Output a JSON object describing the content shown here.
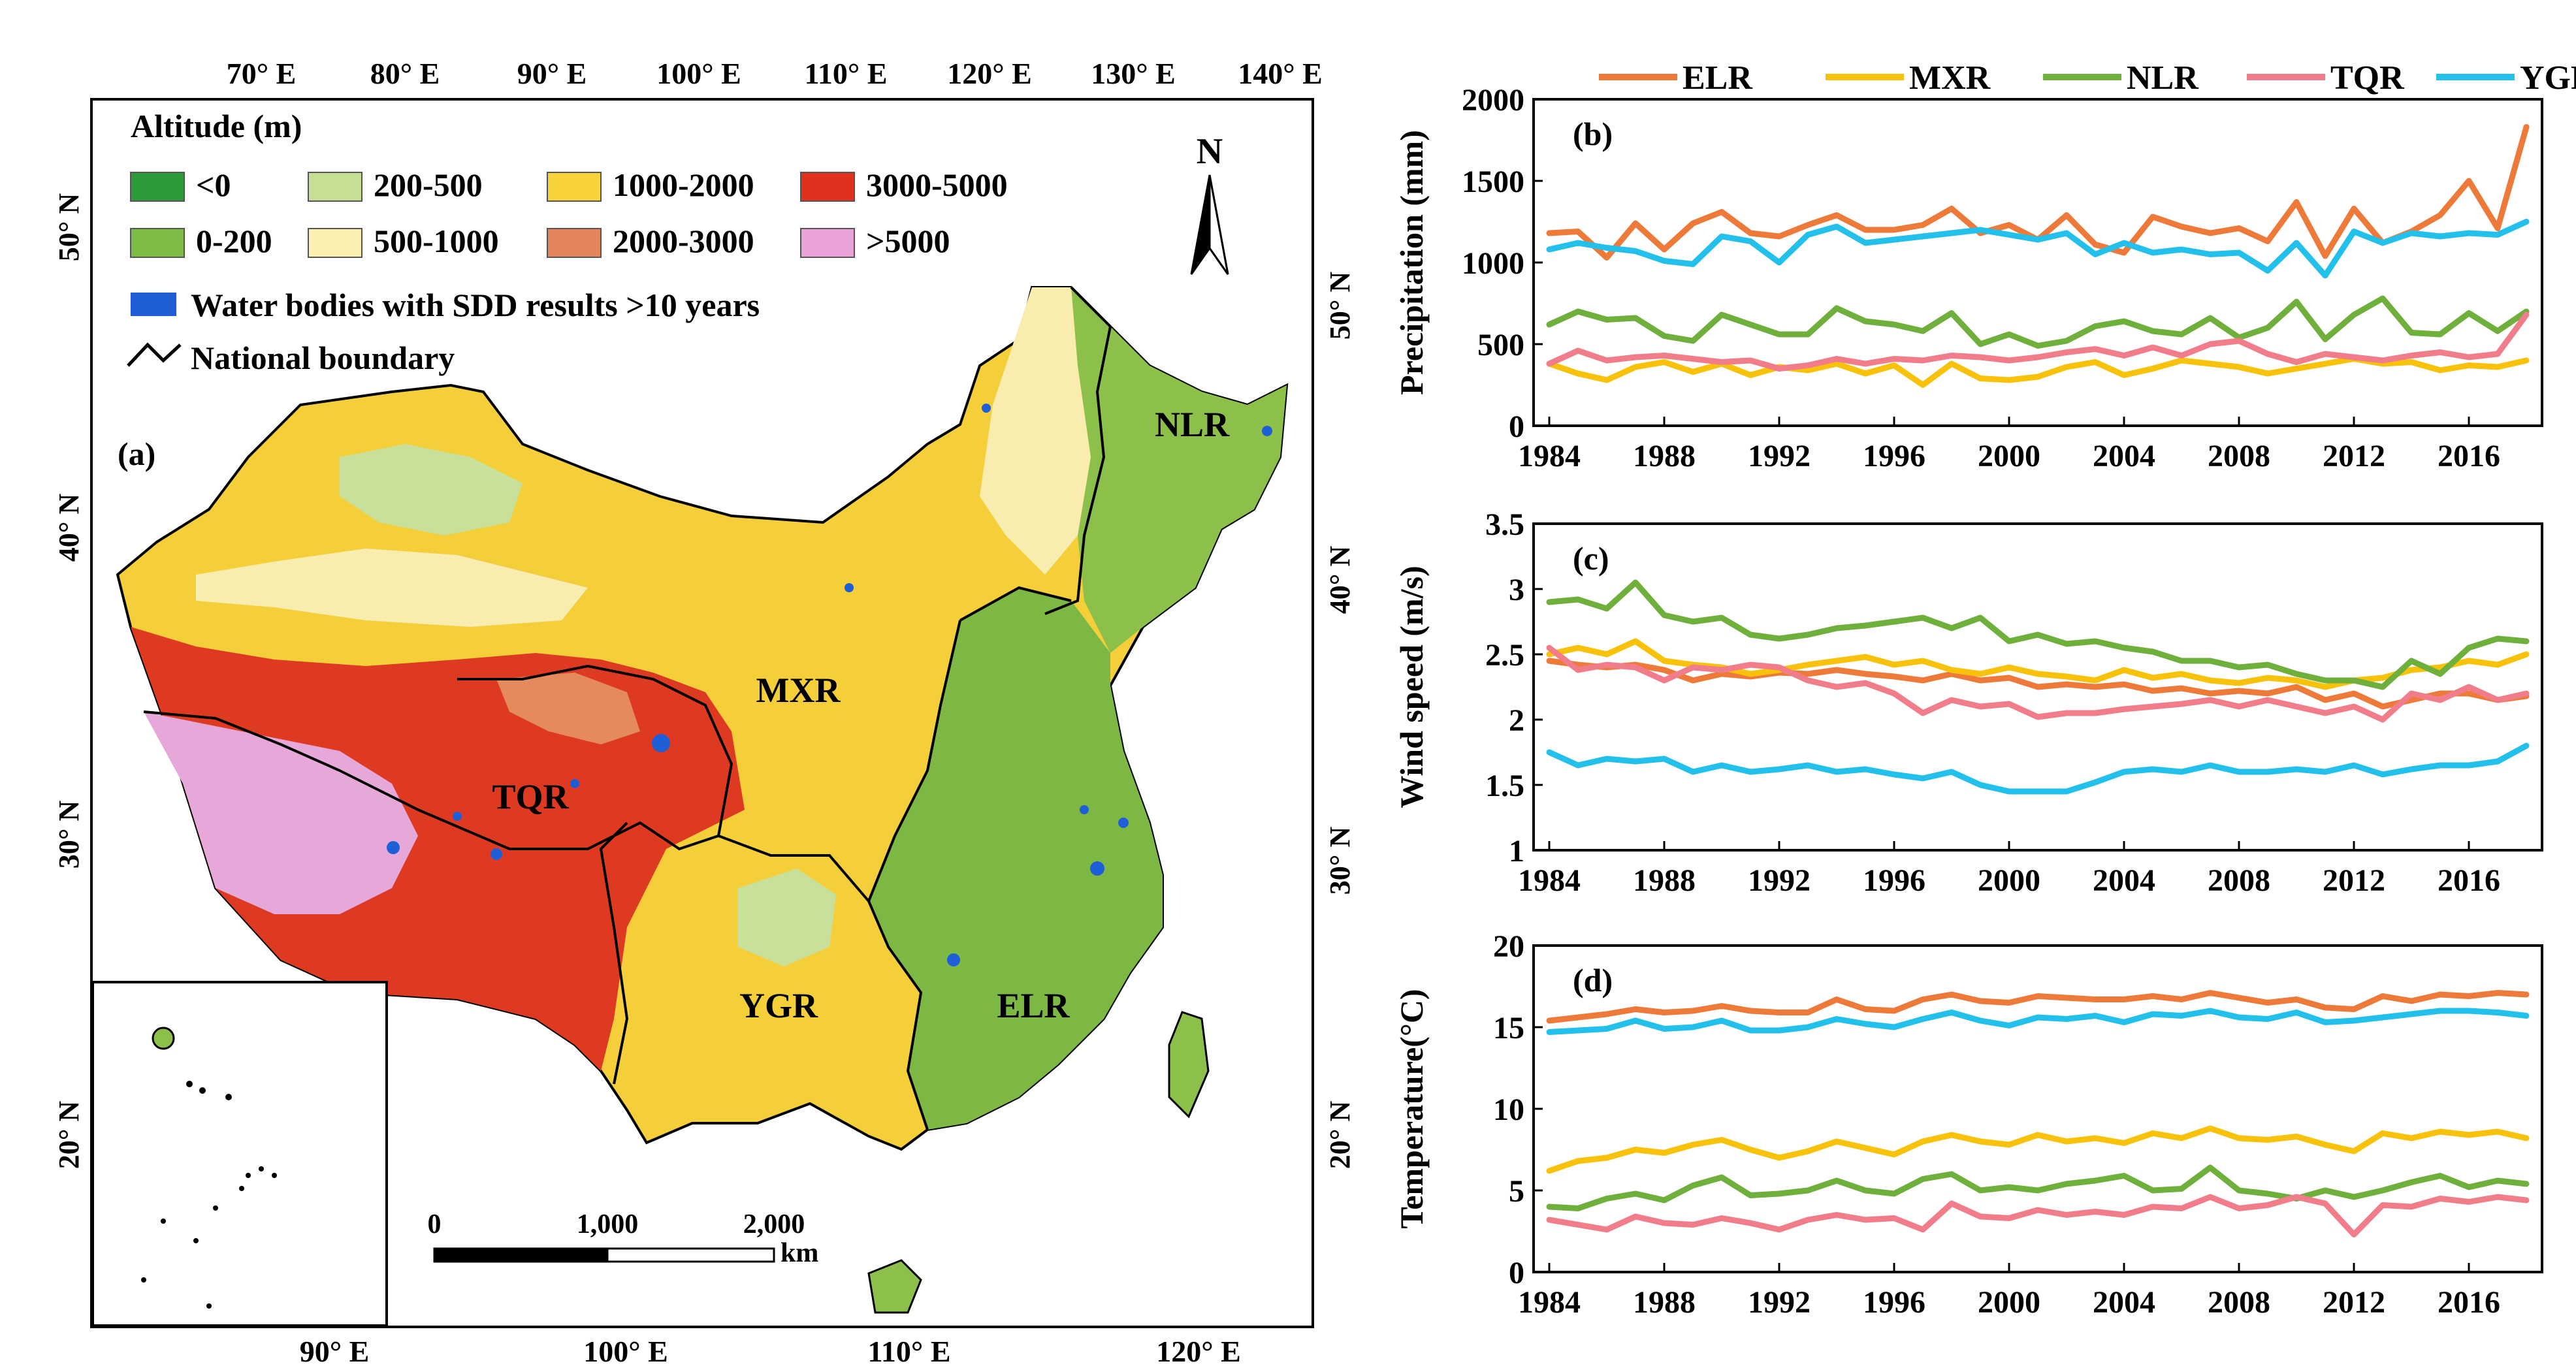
{
  "map": {
    "panel_label": "(a)",
    "legend_title": "Altitude (m)",
    "legend_items": [
      {
        "label": "<0",
        "color": "#2f9a3a"
      },
      {
        "label": "200-500",
        "color": "#c5df94"
      },
      {
        "label": "1000-2000",
        "color": "#f7d23a"
      },
      {
        "label": "3000-5000",
        "color": "#e0311f"
      },
      {
        "label": "0-200",
        "color": "#7dbb47"
      },
      {
        "label": "500-1000",
        "color": "#fbf0b1"
      },
      {
        "label": "2000-3000",
        "color": "#e4845a"
      },
      {
        "label": ">5000",
        "color": "#eaa3d8"
      }
    ],
    "water_label": "Water bodies with SDD results >10 years",
    "water_color": "#1e5fd8",
    "boundary_label": "National boundary",
    "north_label": "N",
    "region_labels": [
      "NLR",
      "MXR",
      "TQR",
      "YGR",
      "ELR"
    ],
    "top_lon_ticks": [
      "70° E",
      "80° E",
      "90° E",
      "100° E",
      "110° E",
      "120° E",
      "130° E",
      "140° E"
    ],
    "bottom_lon_ticks": [
      "90° E",
      "100° E",
      "110° E",
      "120° E"
    ],
    "left_lat_ticks": [
      "50° N",
      "40° N",
      "30° N",
      "20° N"
    ],
    "right_lat_ticks": [
      "50° N",
      "40° N",
      "30° N",
      "20° N"
    ],
    "scale_labels": [
      "0",
      "1,000",
      "2,000",
      "km"
    ]
  },
  "legend": {
    "series": [
      {
        "name": "ELR",
        "color": "#ee7a3a"
      },
      {
        "name": "MXR",
        "color": "#f8c20a"
      },
      {
        "name": "NLR",
        "color": "#6faf3b"
      },
      {
        "name": "TQR",
        "color": "#f27d8a"
      },
      {
        "name": "YGR",
        "color": "#23c0ec"
      }
    ]
  },
  "chart_data": [
    {
      "type": "line",
      "panel": "(b)",
      "ylabel": "Precipitation (mm)",
      "ylim": [
        0,
        2000
      ],
      "yticks": [
        "0",
        "500",
        "1000",
        "1500",
        "2000"
      ],
      "x_tick_labels": [
        "1984",
        "1988",
        "1992",
        "1996",
        "2000",
        "2004",
        "2008",
        "2012",
        "2016"
      ],
      "x": [
        1984,
        1985,
        1986,
        1987,
        1988,
        1989,
        1990,
        1991,
        1992,
        1993,
        1994,
        1995,
        1996,
        1997,
        1998,
        1999,
        2000,
        2001,
        2002,
        2003,
        2004,
        2005,
        2006,
        2007,
        2008,
        2009,
        2010,
        2011,
        2012,
        2013,
        2014,
        2015,
        2016,
        2017,
        2018
      ],
      "series": [
        {
          "name": "ELR",
          "values": [
            1180,
            1190,
            1030,
            1240,
            1080,
            1240,
            1310,
            1180,
            1160,
            1230,
            1290,
            1200,
            1200,
            1230,
            1330,
            1180,
            1230,
            1140,
            1290,
            1110,
            1060,
            1280,
            1220,
            1180,
            1210,
            1130,
            1370,
            1040,
            1330,
            1120,
            1190,
            1290,
            1500,
            1210,
            1830
          ]
        },
        {
          "name": "MXR",
          "values": [
            380,
            320,
            280,
            360,
            390,
            330,
            380,
            310,
            360,
            340,
            380,
            320,
            370,
            250,
            380,
            290,
            280,
            300,
            360,
            390,
            310,
            350,
            400,
            380,
            360,
            320,
            350,
            380,
            410,
            380,
            390,
            340,
            370,
            360,
            400
          ]
        },
        {
          "name": "NLR",
          "values": [
            620,
            700,
            650,
            660,
            550,
            520,
            680,
            620,
            560,
            560,
            720,
            640,
            620,
            580,
            690,
            500,
            560,
            490,
            520,
            610,
            640,
            580,
            560,
            660,
            540,
            600,
            760,
            530,
            680,
            780,
            570,
            560,
            690,
            580,
            700
          ]
        },
        {
          "name": "TQR",
          "values": [
            380,
            460,
            400,
            420,
            430,
            410,
            390,
            400,
            350,
            370,
            410,
            380,
            410,
            400,
            430,
            420,
            400,
            420,
            450,
            470,
            430,
            480,
            430,
            500,
            520,
            440,
            390,
            440,
            420,
            400,
            430,
            450,
            420,
            440,
            680
          ]
        },
        {
          "name": "YGR",
          "values": [
            1080,
            1120,
            1090,
            1070,
            1010,
            990,
            1160,
            1130,
            1000,
            1170,
            1220,
            1120,
            1140,
            1160,
            1180,
            1200,
            1170,
            1140,
            1180,
            1050,
            1120,
            1060,
            1080,
            1050,
            1060,
            950,
            1120,
            920,
            1190,
            1120,
            1180,
            1160,
            1180,
            1170,
            1250
          ]
        }
      ]
    },
    {
      "type": "line",
      "panel": "(c)",
      "ylabel": "Wind speed (m/s)",
      "ylim": [
        1,
        3.5
      ],
      "yticks": [
        "1",
        "1.5",
        "2",
        "2.5",
        "3",
        "3.5"
      ],
      "x_tick_labels": [
        "1984",
        "1988",
        "1992",
        "1996",
        "2000",
        "2004",
        "2008",
        "2012",
        "2016"
      ],
      "x": [
        1984,
        1985,
        1986,
        1987,
        1988,
        1989,
        1990,
        1991,
        1992,
        1993,
        1994,
        1995,
        1996,
        1997,
        1998,
        1999,
        2000,
        2001,
        2002,
        2003,
        2004,
        2005,
        2006,
        2007,
        2008,
        2009,
        2010,
        2011,
        2012,
        2013,
        2014,
        2015,
        2016,
        2017,
        2018
      ],
      "series": [
        {
          "name": "ELR",
          "values": [
            2.45,
            2.42,
            2.4,
            2.42,
            2.38,
            2.3,
            2.35,
            2.33,
            2.36,
            2.35,
            2.38,
            2.35,
            2.33,
            2.3,
            2.35,
            2.3,
            2.32,
            2.25,
            2.27,
            2.25,
            2.27,
            2.22,
            2.24,
            2.2,
            2.22,
            2.2,
            2.25,
            2.15,
            2.2,
            2.1,
            2.15,
            2.2,
            2.2,
            2.15,
            2.18
          ]
        },
        {
          "name": "MXR",
          "values": [
            2.5,
            2.55,
            2.5,
            2.6,
            2.45,
            2.42,
            2.4,
            2.35,
            2.38,
            2.42,
            2.45,
            2.48,
            2.42,
            2.45,
            2.38,
            2.35,
            2.4,
            2.35,
            2.33,
            2.3,
            2.38,
            2.32,
            2.35,
            2.3,
            2.28,
            2.32,
            2.3,
            2.25,
            2.3,
            2.32,
            2.38,
            2.4,
            2.45,
            2.42,
            2.5
          ]
        },
        {
          "name": "NLR",
          "values": [
            2.9,
            2.92,
            2.85,
            3.05,
            2.8,
            2.75,
            2.78,
            2.65,
            2.62,
            2.65,
            2.7,
            2.72,
            2.75,
            2.78,
            2.7,
            2.78,
            2.6,
            2.65,
            2.58,
            2.6,
            2.55,
            2.52,
            2.45,
            2.45,
            2.4,
            2.42,
            2.35,
            2.3,
            2.3,
            2.25,
            2.45,
            2.35,
            2.55,
            2.62,
            2.6
          ]
        },
        {
          "name": "TQR",
          "values": [
            2.55,
            2.38,
            2.42,
            2.4,
            2.3,
            2.4,
            2.38,
            2.42,
            2.4,
            2.3,
            2.25,
            2.28,
            2.2,
            2.05,
            2.15,
            2.1,
            2.12,
            2.02,
            2.05,
            2.05,
            2.08,
            2.1,
            2.12,
            2.15,
            2.1,
            2.15,
            2.1,
            2.05,
            2.1,
            2.0,
            2.2,
            2.15,
            2.25,
            2.15,
            2.2
          ]
        },
        {
          "name": "YGR",
          "values": [
            1.75,
            1.65,
            1.7,
            1.68,
            1.7,
            1.6,
            1.65,
            1.6,
            1.62,
            1.65,
            1.6,
            1.62,
            1.58,
            1.55,
            1.6,
            1.5,
            1.45,
            1.45,
            1.45,
            1.52,
            1.6,
            1.62,
            1.6,
            1.65,
            1.6,
            1.6,
            1.62,
            1.6,
            1.65,
            1.58,
            1.62,
            1.65,
            1.65,
            1.68,
            1.8
          ]
        }
      ]
    },
    {
      "type": "line",
      "panel": "(d)",
      "ylabel": "Temperature(°C)",
      "ylim": [
        0,
        20
      ],
      "yticks": [
        "0",
        "5",
        "10",
        "15",
        "20"
      ],
      "x_tick_labels": [
        "1984",
        "1988",
        "1992",
        "1996",
        "2000",
        "2004",
        "2008",
        "2012",
        "2016"
      ],
      "x": [
        1984,
        1985,
        1986,
        1987,
        1988,
        1989,
        1990,
        1991,
        1992,
        1993,
        1994,
        1995,
        1996,
        1997,
        1998,
        1999,
        2000,
        2001,
        2002,
        2003,
        2004,
        2005,
        2006,
        2007,
        2008,
        2009,
        2010,
        2011,
        2012,
        2013,
        2014,
        2015,
        2016,
        2017,
        2018
      ],
      "series": [
        {
          "name": "ELR",
          "values": [
            15.4,
            15.6,
            15.8,
            16.1,
            15.9,
            16.0,
            16.3,
            16.0,
            15.9,
            15.9,
            16.7,
            16.1,
            16.0,
            16.7,
            17.0,
            16.6,
            16.5,
            16.9,
            16.8,
            16.7,
            16.7,
            16.9,
            16.7,
            17.1,
            16.8,
            16.5,
            16.7,
            16.2,
            16.1,
            16.9,
            16.6,
            17.0,
            16.9,
            17.1,
            17.0
          ]
        },
        {
          "name": "MXR",
          "values": [
            6.2,
            6.8,
            7.0,
            7.5,
            7.3,
            7.8,
            8.1,
            7.5,
            7.0,
            7.4,
            8.0,
            7.6,
            7.2,
            8.0,
            8.4,
            8.0,
            7.8,
            8.4,
            8.0,
            8.2,
            7.9,
            8.5,
            8.2,
            8.8,
            8.2,
            8.1,
            8.3,
            7.8,
            7.4,
            8.5,
            8.2,
            8.6,
            8.4,
            8.6,
            8.2
          ]
        },
        {
          "name": "NLR",
          "values": [
            4.0,
            3.9,
            4.5,
            4.8,
            4.4,
            5.3,
            5.8,
            4.7,
            4.8,
            5.0,
            5.6,
            5.0,
            4.8,
            5.7,
            6.0,
            5.0,
            5.2,
            5.0,
            5.4,
            5.6,
            5.9,
            5.0,
            5.1,
            6.4,
            5.0,
            4.8,
            4.5,
            5.0,
            4.6,
            5.0,
            5.5,
            5.9,
            5.2,
            5.6,
            5.4
          ]
        },
        {
          "name": "TQR",
          "values": [
            3.2,
            2.9,
            2.6,
            3.4,
            3.0,
            2.9,
            3.3,
            3.0,
            2.6,
            3.2,
            3.5,
            3.2,
            3.3,
            2.6,
            4.2,
            3.4,
            3.3,
            3.8,
            3.5,
            3.7,
            3.5,
            4.0,
            3.9,
            4.6,
            3.9,
            4.1,
            4.6,
            4.2,
            2.3,
            4.1,
            4.0,
            4.5,
            4.3,
            4.6,
            4.4
          ]
        },
        {
          "name": "YGR",
          "values": [
            14.7,
            14.8,
            14.9,
            15.4,
            14.9,
            15.0,
            15.4,
            14.8,
            14.8,
            15.0,
            15.5,
            15.2,
            15.0,
            15.5,
            15.9,
            15.4,
            15.1,
            15.6,
            15.5,
            15.7,
            15.3,
            15.8,
            15.7,
            16.0,
            15.6,
            15.5,
            15.9,
            15.3,
            15.4,
            15.6,
            15.8,
            16.0,
            16.0,
            15.9,
            15.7
          ]
        }
      ]
    }
  ]
}
